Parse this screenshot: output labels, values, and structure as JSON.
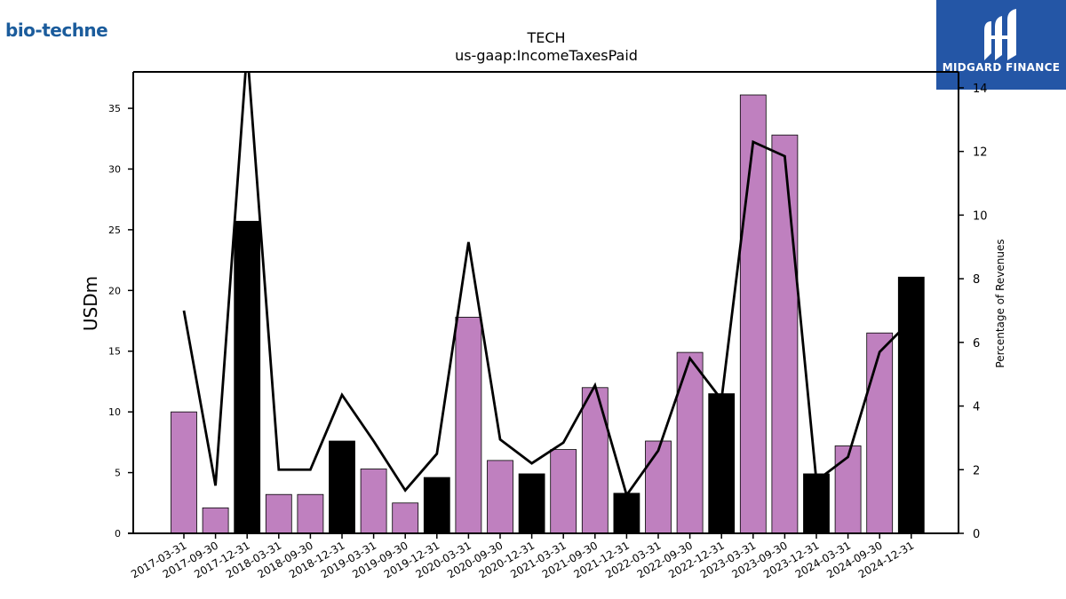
{
  "branding": {
    "company_logo": "bio-techne",
    "badge_label": "MIDGARD FINANCE"
  },
  "colors": {
    "bar_default": "#bf80bf",
    "bar_q4": "#000000",
    "line": "#000000",
    "badge_bg": "#2456a6",
    "logo": "#1b5c9c"
  },
  "chart_data": {
    "type": "bar",
    "title": "TECH",
    "subtitle": "us-gaap:IncomeTaxesPaid",
    "ylabel": "USDm",
    "y2label": "Percentage of Revenues",
    "ylim": [
      0,
      38
    ],
    "y2lim": [
      0,
      14.5
    ],
    "yticks": [
      0,
      5,
      10,
      15,
      20,
      25,
      30,
      35
    ],
    "y2ticks": [
      0,
      2,
      4,
      6,
      8,
      10,
      12,
      14
    ],
    "categories": [
      "2017-03-31",
      "2017-09-30",
      "2017-12-31",
      "2018-03-31",
      "2018-09-30",
      "2018-12-31",
      "2019-03-31",
      "2019-09-30",
      "2019-12-31",
      "2020-03-31",
      "2020-09-30",
      "2020-12-31",
      "2021-03-31",
      "2021-09-30",
      "2021-12-31",
      "2022-03-31",
      "2022-09-30",
      "2022-12-31",
      "2023-03-31",
      "2023-09-30",
      "2023-12-31",
      "2024-03-31",
      "2024-09-30",
      "2024-12-31"
    ],
    "series": [
      {
        "type": "bar",
        "axis": "left",
        "values": [
          10.0,
          2.1,
          25.7,
          3.2,
          3.2,
          7.6,
          5.3,
          2.5,
          4.6,
          17.8,
          6.0,
          4.9,
          6.9,
          12.0,
          3.3,
          7.6,
          14.9,
          11.5,
          36.1,
          32.8,
          4.9,
          7.2,
          16.5,
          21.1
        ],
        "highlight": [
          false,
          false,
          true,
          false,
          false,
          true,
          false,
          false,
          true,
          false,
          false,
          true,
          false,
          false,
          true,
          false,
          false,
          true,
          false,
          false,
          true,
          false,
          false,
          true
        ]
      },
      {
        "type": "line",
        "axis": "right",
        "values": [
          7.0,
          1.5,
          15.2,
          2.0,
          2.0,
          4.35,
          2.9,
          1.35,
          2.5,
          9.15,
          2.95,
          2.2,
          2.85,
          4.65,
          1.2,
          2.6,
          5.5,
          4.2,
          12.3,
          11.85,
          1.65,
          2.4,
          5.7,
          6.7
        ]
      }
    ]
  }
}
